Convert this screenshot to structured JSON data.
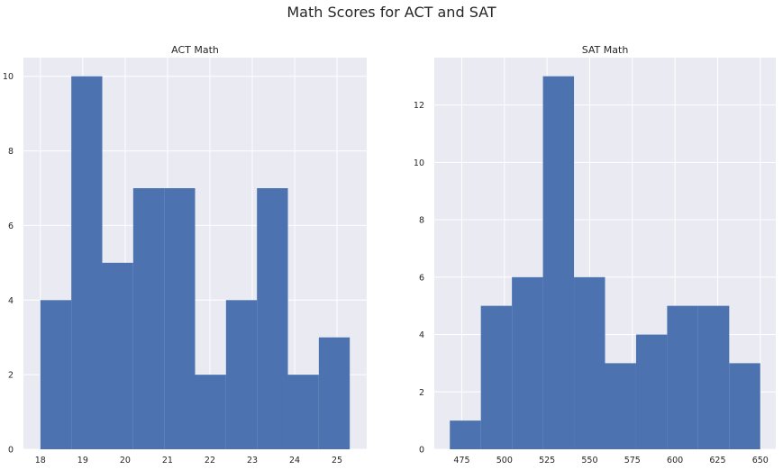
{
  "figure": {
    "title": "Math Scores for ACT and SAT"
  },
  "colors": {
    "bar": "#4c72b0",
    "plot_bg": "#eaeaf2",
    "grid": "#ffffff"
  },
  "chart_data": [
    {
      "type": "bar",
      "title": "ACT Math",
      "xlabel": "",
      "ylabel": "",
      "bin_edges": [
        18.0,
        18.73,
        19.46,
        20.19,
        20.92,
        21.65,
        22.38,
        23.11,
        23.84,
        24.57,
        25.3
      ],
      "values": [
        4,
        10,
        5,
        7,
        7,
        2,
        4,
        7,
        2,
        3
      ],
      "xlim": [
        17.6,
        25.7
      ],
      "ylim": [
        0,
        10.5
      ],
      "xticks": [
        18,
        19,
        20,
        21,
        22,
        23,
        24,
        25
      ],
      "yticks": [
        0,
        2,
        4,
        6,
        8,
        10
      ],
      "grid": true
    },
    {
      "type": "bar",
      "title": "SAT Math",
      "xlabel": "",
      "ylabel": "",
      "bin_edges": [
        468,
        486.2,
        504.4,
        522.6,
        540.8,
        559,
        577.2,
        595.4,
        613.6,
        631.8,
        650
      ],
      "values": [
        1,
        5,
        6,
        13,
        6,
        3,
        4,
        5,
        5,
        3
      ],
      "xlim": [
        458.9,
        659.1
      ],
      "ylim": [
        0,
        13.65
      ],
      "xticks": [
        475,
        500,
        525,
        550,
        575,
        600,
        625,
        650
      ],
      "yticks": [
        0,
        2,
        4,
        6,
        8,
        10,
        12
      ],
      "grid": true
    }
  ]
}
